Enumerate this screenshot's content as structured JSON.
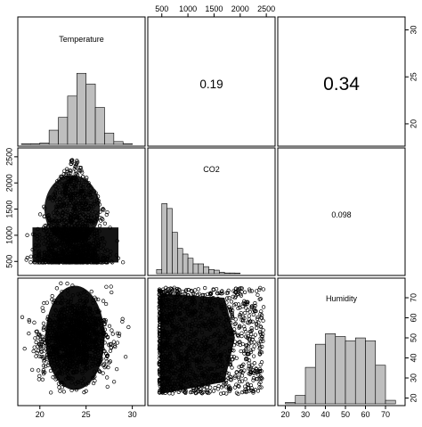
{
  "chart_data": {
    "type": "scatter-matrix",
    "variables": [
      "Temperature",
      "CO2",
      "Humidity"
    ],
    "correlations": [
      {
        "row": 0,
        "col": 1,
        "label": "0.19",
        "value": 0.19
      },
      {
        "row": 0,
        "col": 2,
        "label": "0.34",
        "value": 0.34
      },
      {
        "row": 1,
        "col": 2,
        "label": "0.098",
        "value": 0.098
      }
    ],
    "axes": {
      "temperature": {
        "range": [
          18,
          31
        ],
        "ticks": [
          "20",
          "25",
          "30"
        ],
        "tick_values": [
          20,
          25,
          30
        ]
      },
      "co2": {
        "range": [
          300,
          2600
        ],
        "ticks": [
          "500",
          "1000",
          "1500",
          "2000",
          "2500"
        ],
        "tick_values": [
          500,
          1000,
          1500,
          2000,
          2500
        ]
      },
      "humidity": {
        "range": [
          18,
          78
        ],
        "ticks": [
          "20",
          "30",
          "40",
          "50",
          "60",
          "70"
        ],
        "tick_values": [
          20,
          30,
          40,
          50,
          60,
          70
        ]
      }
    },
    "histograms": {
      "Temperature": {
        "bin_width": 1,
        "bins": [
          {
            "x": 18,
            "rel": 0.0
          },
          {
            "x": 19,
            "rel": 0.01
          },
          {
            "x": 20,
            "rel": 0.02
          },
          {
            "x": 21,
            "rel": 0.2
          },
          {
            "x": 22,
            "rel": 0.38
          },
          {
            "x": 23,
            "rel": 0.68
          },
          {
            "x": 24,
            "rel": 1.0
          },
          {
            "x": 25,
            "rel": 0.85
          },
          {
            "x": 26,
            "rel": 0.52
          },
          {
            "x": 27,
            "rel": 0.16
          },
          {
            "x": 28,
            "rel": 0.04
          },
          {
            "x": 29,
            "rel": 0.01
          }
        ]
      },
      "CO2": {
        "bin_width": 100,
        "bins": [
          {
            "x": 400,
            "rel": 0.06
          },
          {
            "x": 500,
            "rel": 1.0
          },
          {
            "x": 600,
            "rel": 0.93
          },
          {
            "x": 700,
            "rel": 0.59
          },
          {
            "x": 800,
            "rel": 0.36
          },
          {
            "x": 900,
            "rel": 0.28
          },
          {
            "x": 1000,
            "rel": 0.22
          },
          {
            "x": 1100,
            "rel": 0.14
          },
          {
            "x": 1200,
            "rel": 0.14
          },
          {
            "x": 1300,
            "rel": 0.1
          },
          {
            "x": 1400,
            "rel": 0.06
          },
          {
            "x": 1500,
            "rel": 0.05
          },
          {
            "x": 1600,
            "rel": 0.02
          },
          {
            "x": 1700,
            "rel": 0.01
          },
          {
            "x": 1800,
            "rel": 0.01
          },
          {
            "x": 1900,
            "rel": 0.005
          }
        ]
      },
      "Humidity": {
        "bin_width": 5,
        "bins": [
          {
            "x": 20,
            "rel": 0.02
          },
          {
            "x": 25,
            "rel": 0.12
          },
          {
            "x": 30,
            "rel": 0.52
          },
          {
            "x": 35,
            "rel": 0.85
          },
          {
            "x": 40,
            "rel": 1.0
          },
          {
            "x": 45,
            "rel": 0.96
          },
          {
            "x": 50,
            "rel": 0.9
          },
          {
            "x": 55,
            "rel": 0.94
          },
          {
            "x": 60,
            "rel": 0.9
          },
          {
            "x": 65,
            "rel": 0.55
          },
          {
            "x": 70,
            "rel": 0.05
          }
        ]
      }
    },
    "scatter_clouds": {
      "co2_vs_temperature": {
        "x_center": 23.6,
        "x_sd": 1.9,
        "y_median": 750,
        "y_max": 2550
      },
      "humidity_vs_temperature": {
        "x_center": 23.8,
        "x_sd": 1.8,
        "y_center": 50,
        "y_sd": 10
      },
      "humidity_vs_co2": {
        "x_min": 450,
        "x_max": 2450,
        "y_min": 22,
        "y_max": 75
      }
    },
    "grid": false,
    "colors": {
      "hist_fill": "#bebebe",
      "point": "#000000",
      "frame": "#000000"
    }
  }
}
